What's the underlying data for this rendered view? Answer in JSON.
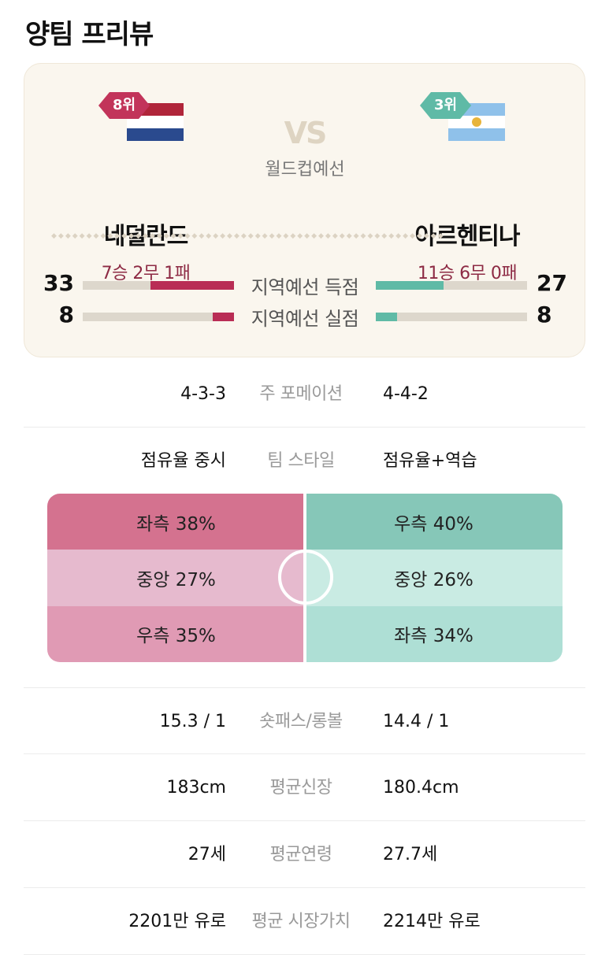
{
  "title": "양팀 프리뷰",
  "match": {
    "vs_text": "VS",
    "league": "월드컵예선"
  },
  "home": {
    "rank": "8위",
    "name": "네덜란드",
    "record": "7승 2무 1패",
    "flag_icon": "netherlands-flag",
    "color": "#b92d55"
  },
  "away": {
    "rank": "3위",
    "name": "아르헨티나",
    "record": "11승 6무 0패",
    "flag_icon": "argentina-flag",
    "color": "#5fbaa6"
  },
  "bar_stats": [
    {
      "label": "지역예선 득점",
      "home": 33,
      "away": 27,
      "home_display": "33",
      "away_display": "27",
      "home_fraction": 0.55,
      "away_fraction": 0.45
    },
    {
      "label": "지역예선 실점",
      "home": 8,
      "away": 8,
      "home_display": "8",
      "away_display": "8",
      "home_fraction": 0.14,
      "away_fraction": 0.14
    }
  ],
  "info_rows_top": [
    {
      "label": "주 포메이션",
      "home": "4-3-3",
      "away": "4-4-2"
    },
    {
      "label": "팀 스타일",
      "home": "점유율 중시",
      "away": "점유율+역습"
    }
  ],
  "attack_zones": {
    "home": [
      {
        "text": "좌측 38%",
        "value": 38,
        "color": "#d4728f"
      },
      {
        "text": "중앙 27%",
        "value": 27,
        "color": "#e6bace"
      },
      {
        "text": "우측 35%",
        "value": 35,
        "color": "#e09ab4"
      }
    ],
    "away": [
      {
        "text": "우측 40%",
        "value": 40,
        "color": "#86c7b8"
      },
      {
        "text": "중앙 26%",
        "value": 26,
        "color": "#c9ebe3"
      },
      {
        "text": "좌측 34%",
        "value": 34,
        "color": "#aedfd5"
      }
    ]
  },
  "info_rows_bottom": [
    {
      "label": "숏패스/롱볼",
      "home": "15.3 / 1",
      "away": "14.4 / 1"
    },
    {
      "label": "평균신장",
      "home": "183cm",
      "away": "180.4cm"
    },
    {
      "label": "평균연령",
      "home": "27세",
      "away": "27.7세"
    },
    {
      "label": "평균 시장가치",
      "home": "2201만 유로",
      "away": "2214만 유로"
    }
  ]
}
